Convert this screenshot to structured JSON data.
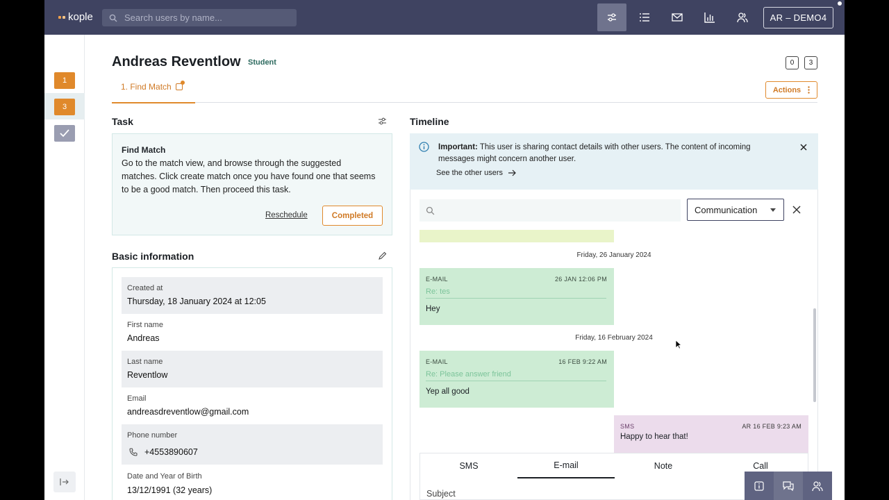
{
  "app": {
    "logo": "kople",
    "user_button": "AR – DEMO4"
  },
  "search": {
    "placeholder": "Search users by name..."
  },
  "nav_icons": [
    "sliders-icon",
    "list-icon",
    "mail-icon",
    "chart-icon",
    "users-icon"
  ],
  "rail": {
    "items": [
      {
        "label": "1"
      },
      {
        "label": "3"
      }
    ]
  },
  "profile": {
    "name": "Andreas Reventlow",
    "role": "Student",
    "counters": [
      "0",
      "3"
    ]
  },
  "tabs": {
    "find_match": "1.  Find Match",
    "actions": "Actions"
  },
  "task": {
    "section_title": "Task",
    "title": "Find Match",
    "description": "Go to the match view, and browse through the suggested matches. Click create match once you have found one that seems to be a good match. Then proceed this task.",
    "reschedule": "Reschedule",
    "completed": "Completed"
  },
  "basic_info": {
    "section_title": "Basic information",
    "fields": [
      {
        "label": "Created at",
        "value": "Thursday, 18 January 2024 at 12:05"
      },
      {
        "label": "First name",
        "value": "Andreas"
      },
      {
        "label": "Last name",
        "value": "Reventlow"
      },
      {
        "label": "Email",
        "value": "andreasdreventlow@gmail.com"
      },
      {
        "label": "Phone number",
        "value": "+4553890607"
      },
      {
        "label": "Date and Year of Birth",
        "value": "13/12/1991 (32 years)"
      }
    ]
  },
  "timeline": {
    "section_title": "Timeline",
    "banner": {
      "bold": "Important:",
      "text": " This user is sharing contact details with other users. The content of incoming messages might concern another user.",
      "link": "See the other users"
    },
    "filter": "Communication",
    "days": [
      "Friday, 26 January 2024",
      "Friday, 16 February 2024"
    ],
    "messages": [
      {
        "type": "E-MAIL",
        "time": "26 JAN 12:06 PM",
        "subject": "Re: tes",
        "body": "Hey"
      },
      {
        "type": "E-MAIL",
        "time": "16 FEB 9:22 AM",
        "subject": "Re: Please answer friend",
        "body": "Yep all good"
      }
    ],
    "sms": {
      "type": "SMS",
      "time": "AR  16 FEB 9:23 AM",
      "body": "Happy to hear that!"
    },
    "composer": {
      "tabs": [
        "SMS",
        "E-mail",
        "Note",
        "Call"
      ],
      "active_tab": "E-mail",
      "subject_placeholder": "Subject"
    }
  },
  "colors": {
    "topbar": "#3f4361",
    "accent": "#e0892b",
    "email_bubble": "#cdecd4",
    "sms_bubble": "#ecdcec"
  }
}
